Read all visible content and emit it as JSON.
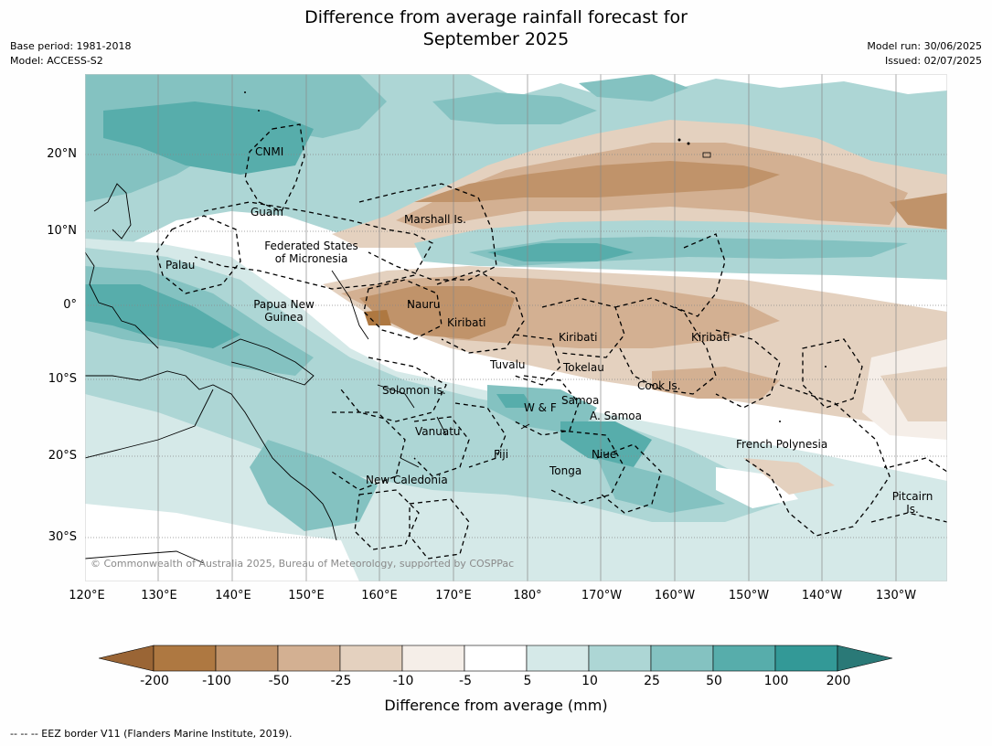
{
  "title_lines": [
    "Difference from average rainfall forecast for",
    "September 2025"
  ],
  "meta_left": [
    "Base period: 1981-2018",
    "Model: ACCESS-S2"
  ],
  "meta_right": [
    "Model run: 30/06/2025",
    "Issued: 02/07/2025"
  ],
  "lat_labels": [
    "20°N",
    "10°N",
    "0°",
    "10°S",
    "20°S",
    "30°S"
  ],
  "lon_labels": [
    "120°E",
    "130°E",
    "140°E",
    "150°E",
    "160°E",
    "170°E",
    "180°",
    "170°W",
    "160°W",
    "150°W",
    "140°W",
    "130°W"
  ],
  "places": [
    {
      "name": "CNMI"
    },
    {
      "name": "Guam"
    },
    {
      "name": "Marshall Is."
    },
    {
      "name": "Federated States of Micronesia"
    },
    {
      "name": "Palau"
    },
    {
      "name": "Papua New Guinea"
    },
    {
      "name": "Nauru"
    },
    {
      "name": "Kiribati"
    },
    {
      "name": "Kiribati"
    },
    {
      "name": "Kiribati"
    },
    {
      "name": "Tuvalu"
    },
    {
      "name": "Tokelau"
    },
    {
      "name": "Cook Is."
    },
    {
      "name": "Solomon Is."
    },
    {
      "name": "W & F"
    },
    {
      "name": "Samoa"
    },
    {
      "name": "A. Samoa"
    },
    {
      "name": "Vanuatu"
    },
    {
      "name": "Fiji"
    },
    {
      "name": "Niue"
    },
    {
      "name": "Tonga"
    },
    {
      "name": "French Polynesia"
    },
    {
      "name": "New Caledonia"
    },
    {
      "name": "Pitcairn Is."
    }
  ],
  "copyright": "© Commonwealth of Australia 2025, Bureau of Meteorology, supported by COSPPac",
  "colorbar": {
    "title": "Difference from average (mm)",
    "tick_labels": [
      "-200",
      "-100",
      "-50",
      "-25",
      "-10",
      "-5",
      "5",
      "10",
      "25",
      "50",
      "100",
      "200"
    ],
    "colors": [
      "#9a6535",
      "#ae7841",
      "#c0936a",
      "#d3b092",
      "#e4d1bf",
      "#f5eee8",
      "#ffffff",
      "#d5e9e8",
      "#add6d5",
      "#84c2c1",
      "#57adab",
      "#339997",
      "#2a7977"
    ]
  },
  "footnote": "--  --  -- EEZ border V11 (Flanders Marine Institute, 2019)."
}
